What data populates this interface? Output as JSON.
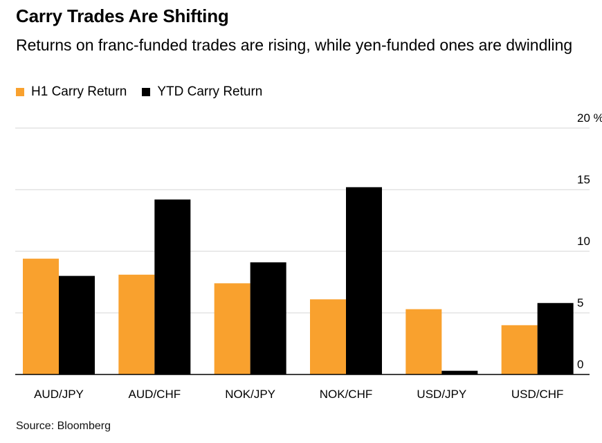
{
  "chart_data": {
    "type": "bar",
    "title": "Carry Trades Are Shifting",
    "subtitle": "Returns on franc-funded trades are rising, while yen-funded ones are dwindling",
    "categories": [
      "AUD/JPY",
      "AUD/CHF",
      "NOK/JPY",
      "NOK/CHF",
      "USD/JPY",
      "USD/CHF"
    ],
    "series": [
      {
        "name": "H1 Carry Return",
        "color": "#f9a12e",
        "values": [
          9.4,
          8.1,
          7.4,
          6.1,
          5.3,
          4.0
        ]
      },
      {
        "name": "YTD Carry Return",
        "color": "#000000",
        "values": [
          8.0,
          14.2,
          9.1,
          15.2,
          0.3,
          5.8
        ]
      }
    ],
    "yticks": [
      "0",
      "5",
      "10",
      "15",
      "20 %"
    ],
    "ylim": [
      0,
      20
    ],
    "grid": true,
    "legend_position": "top-left",
    "source": "Source: Bloomberg"
  }
}
